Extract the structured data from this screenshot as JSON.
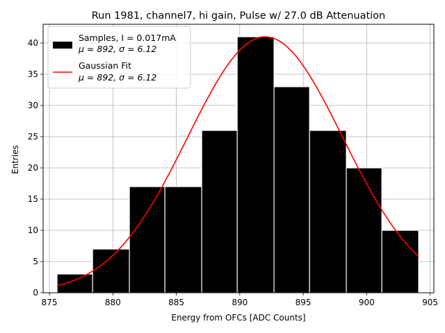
{
  "chart_data": {
    "type": "bar",
    "title": "Run 1981, channel7, hi gain, Pulse w/ 27.0 dB Attenuation",
    "xlabel": "Energy from OFCs [ADC Counts]",
    "ylabel": "Entries",
    "xlim": [
      874.5,
      905.3
    ],
    "ylim": [
      0,
      43
    ],
    "xticks": [
      875,
      880,
      885,
      890,
      895,
      900,
      905
    ],
    "yticks": [
      0,
      5,
      10,
      15,
      20,
      25,
      30,
      35,
      40
    ],
    "grid": true,
    "legend_position": "top-left",
    "bin_edges": [
      875.6,
      878.4,
      881.3,
      884.1,
      887.0,
      889.8,
      892.7,
      895.5,
      898.4,
      901.2,
      904.1
    ],
    "values": [
      3,
      7,
      17,
      17,
      26,
      41,
      33,
      26,
      20,
      10
    ],
    "bar_color": "#000000",
    "fit": {
      "name": "Gaussian Fit",
      "color": "#ff0000",
      "amplitude": 41,
      "mean": 892,
      "sigma": 6.12,
      "x_range": [
        875.6,
        904.1
      ]
    },
    "legend": [
      {
        "line1": "Samples, I = 0.017mA",
        "line2": "μ = 892, σ = 6.12"
      },
      {
        "line1": "Gaussian Fit",
        "line2": "μ = 892, σ = 6.12"
      }
    ]
  }
}
